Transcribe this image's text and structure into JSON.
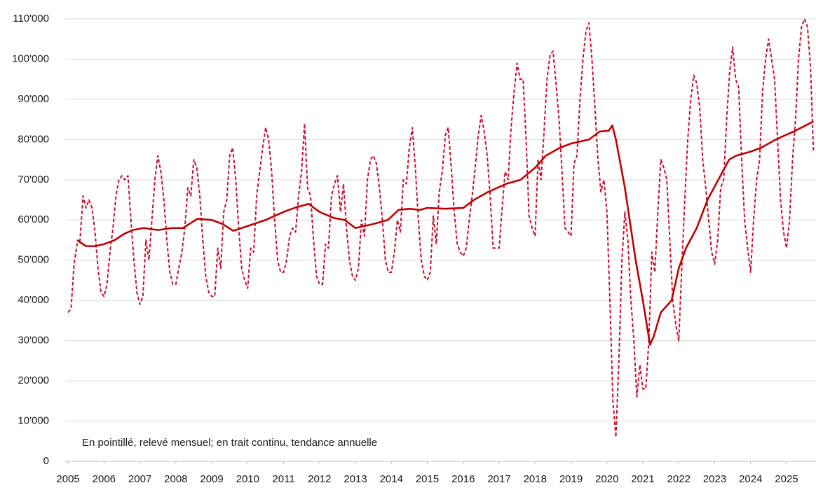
{
  "chart_data": {
    "type": "line",
    "annotation": "En pointillé, relevé mensuel; en trait continu, tendance annuelle",
    "xlim": [
      2004.92,
      2025.82
    ],
    "xticks": [
      2005,
      2006,
      2007,
      2008,
      2009,
      2010,
      2011,
      2012,
      2013,
      2014,
      2015,
      2016,
      2017,
      2018,
      2019,
      2020,
      2021,
      2022,
      2023,
      2024,
      2025
    ],
    "ylim": [
      0,
      110000
    ],
    "yticks": [
      0,
      {
        "value": 10000,
        "label": "10'000"
      },
      {
        "value": 20000,
        "label": "20'000"
      },
      {
        "value": 30000,
        "label": "30'000"
      },
      {
        "value": 40000,
        "label": "40'000"
      },
      {
        "value": 50000,
        "label": "50'000"
      },
      {
        "value": 60000,
        "label": "60'000"
      },
      {
        "value": 70000,
        "label": "70'000"
      },
      {
        "value": 80000,
        "label": "80'000"
      },
      {
        "value": 90000,
        "label": "90'000"
      },
      {
        "value": 100000,
        "label": "100'000"
      },
      {
        "value": 110000,
        "label": "110'000"
      }
    ],
    "grid": true,
    "series": [
      {
        "color": "#c8102e",
        "line_style": "dashed",
        "x": [
          2005,
          2005.083,
          2005.167,
          2005.25,
          2005.333,
          2005.417,
          2005.5,
          2005.583,
          2005.667,
          2005.75,
          2005.833,
          2005.917,
          2006,
          2006.083,
          2006.167,
          2006.25,
          2006.333,
          2006.417,
          2006.5,
          2006.583,
          2006.667,
          2006.75,
          2006.833,
          2006.917,
          2007,
          2007.083,
          2007.167,
          2007.25,
          2007.333,
          2007.417,
          2007.5,
          2007.583,
          2007.667,
          2007.75,
          2007.833,
          2007.917,
          2008,
          2008.083,
          2008.167,
          2008.25,
          2008.333,
          2008.417,
          2008.5,
          2008.583,
          2008.667,
          2008.75,
          2008.833,
          2008.917,
          2009,
          2009.083,
          2009.167,
          2009.25,
          2009.333,
          2009.417,
          2009.5,
          2009.583,
          2009.667,
          2009.75,
          2009.833,
          2009.917,
          2010,
          2010.083,
          2010.167,
          2010.25,
          2010.333,
          2010.417,
          2010.5,
          2010.583,
          2010.667,
          2010.75,
          2010.833,
          2010.917,
          2011,
          2011.083,
          2011.167,
          2011.25,
          2011.333,
          2011.417,
          2011.5,
          2011.583,
          2011.667,
          2011.75,
          2011.833,
          2011.917,
          2012,
          2012.083,
          2012.167,
          2012.25,
          2012.333,
          2012.417,
          2012.5,
          2012.583,
          2012.667,
          2012.75,
          2012.833,
          2012.917,
          2013,
          2013.083,
          2013.167,
          2013.25,
          2013.333,
          2013.417,
          2013.5,
          2013.583,
          2013.667,
          2013.75,
          2013.833,
          2013.917,
          2014,
          2014.083,
          2014.167,
          2014.25,
          2014.333,
          2014.417,
          2014.5,
          2014.583,
          2014.667,
          2014.75,
          2014.833,
          2014.917,
          2015,
          2015.083,
          2015.167,
          2015.25,
          2015.333,
          2015.417,
          2015.5,
          2015.583,
          2015.667,
          2015.75,
          2015.833,
          2015.917,
          2016,
          2016.083,
          2016.167,
          2016.25,
          2016.333,
          2016.417,
          2016.5,
          2016.583,
          2016.667,
          2016.75,
          2016.833,
          2016.917,
          2017,
          2017.083,
          2017.167,
          2017.25,
          2017.333,
          2017.417,
          2017.5,
          2017.583,
          2017.667,
          2017.75,
          2017.833,
          2017.917,
          2018,
          2018.083,
          2018.167,
          2018.25,
          2018.333,
          2018.417,
          2018.5,
          2018.583,
          2018.667,
          2018.75,
          2018.833,
          2018.917,
          2019,
          2019.083,
          2019.167,
          2019.25,
          2019.333,
          2019.417,
          2019.5,
          2019.583,
          2019.667,
          2019.75,
          2019.833,
          2019.917,
          2020,
          2020.083,
          2020.167,
          2020.25,
          2020.333,
          2020.417,
          2020.5,
          2020.583,
          2020.667,
          2020.75,
          2020.833,
          2020.917,
          2021,
          2021.083,
          2021.167,
          2021.25,
          2021.333,
          2021.417,
          2021.5,
          2021.583,
          2021.667,
          2021.75,
          2021.833,
          2021.917,
          2022,
          2022.083,
          2022.167,
          2022.25,
          2022.333,
          2022.417,
          2022.5,
          2022.583,
          2022.667,
          2022.75,
          2022.833,
          2022.917,
          2023,
          2023.083,
          2023.167,
          2023.25,
          2023.333,
          2023.417,
          2023.5,
          2023.583,
          2023.667,
          2023.75,
          2023.833,
          2023.917,
          2024,
          2024.083,
          2024.167,
          2024.25,
          2024.333,
          2024.417,
          2024.5,
          2024.583,
          2024.667,
          2024.75,
          2024.833,
          2024.917,
          2025,
          2025.083,
          2025.167,
          2025.25,
          2025.333,
          2025.417,
          2025.5,
          2025.583,
          2025.667,
          2025.75
        ],
        "values": [
          37000,
          38000,
          49000,
          54000,
          55000,
          66000,
          63000,
          65000,
          63000,
          57000,
          48000,
          42000,
          41000,
          44000,
          52000,
          58000,
          66000,
          70000,
          71000,
          70000,
          71000,
          60000,
          50000,
          42000,
          39000,
          41000,
          55000,
          50000,
          60000,
          70000,
          76000,
          72000,
          65000,
          55000,
          47000,
          44000,
          44000,
          48000,
          52000,
          58000,
          68000,
          66000,
          75000,
          73000,
          66000,
          55000,
          46000,
          42000,
          41000,
          41000,
          53000,
          48000,
          62000,
          65000,
          76000,
          78000,
          70000,
          58000,
          48000,
          45000,
          43000,
          53000,
          52000,
          66000,
          72000,
          78000,
          83000,
          80000,
          72000,
          60000,
          50000,
          47000,
          47000,
          50000,
          56000,
          58000,
          57000,
          66000,
          72000,
          84000,
          68000,
          66000,
          55000,
          46000,
          44000,
          44000,
          54000,
          53000,
          66000,
          69000,
          71000,
          62000,
          69000,
          58000,
          50000,
          46000,
          45000,
          48000,
          60000,
          56000,
          70000,
          75000,
          76000,
          74000,
          68000,
          60000,
          50000,
          47000,
          47000,
          52000,
          60000,
          57000,
          70000,
          69000,
          78000,
          83000,
          73000,
          60000,
          50000,
          46000,
          45000,
          47000,
          61000,
          54000,
          67000,
          72000,
          81000,
          83000,
          73000,
          62000,
          54000,
          52000,
          51000,
          53000,
          60000,
          66000,
          73000,
          81000,
          86000,
          82000,
          76000,
          66000,
          53000,
          53000,
          53000,
          63000,
          72000,
          70000,
          83000,
          92000,
          99000,
          95000,
          95000,
          80000,
          61000,
          58000,
          56000,
          75000,
          70000,
          82000,
          95000,
          101000,
          102000,
          94000,
          85000,
          72000,
          58000,
          57000,
          56000,
          74000,
          76000,
          90000,
          100000,
          107000,
          109000,
          100000,
          88000,
          75000,
          67000,
          70000,
          62000,
          40000,
          15000,
          6000,
          25000,
          50000,
          62000,
          55000,
          40000,
          30000,
          16000,
          24000,
          18000,
          18000,
          30000,
          52000,
          47000,
          62000,
          75000,
          73000,
          70000,
          55000,
          40000,
          34000,
          30000,
          48000,
          65000,
          80000,
          90000,
          96000,
          94000,
          88000,
          75000,
          68000,
          60000,
          52000,
          49000,
          55000,
          68000,
          70000,
          85000,
          97000,
          103000,
          95000,
          93000,
          75000,
          60000,
          53000,
          47000,
          60000,
          70000,
          75000,
          92000,
          100000,
          105000,
          100000,
          95000,
          80000,
          65000,
          57000,
          53000,
          60000,
          75000,
          85000,
          100000,
          108000,
          110000,
          108000,
          98000,
          77000
        ]
      },
      {
        "color": "#c00000",
        "line_style": "solid",
        "x": [
          2005.25,
          2005.5,
          2005.75,
          2006,
          2006.3,
          2006.55,
          2006.8,
          2007.1,
          2007.5,
          2007.9,
          2008.2,
          2008.6,
          2009,
          2009.3,
          2009.6,
          2010,
          2010.5,
          2011,
          2011.3,
          2011.7,
          2012,
          2012.4,
          2012.7,
          2013,
          2013.5,
          2013.9,
          2014.2,
          2014.5,
          2014.8,
          2015,
          2015.5,
          2016,
          2016.3,
          2016.7,
          2017.2,
          2017.6,
          2018,
          2018.3,
          2018.7,
          2019,
          2019.5,
          2019.8,
          2020.05,
          2020.15,
          2020.25,
          2020.5,
          2020.8,
          2021,
          2021.2,
          2021.3,
          2021.5,
          2021.8,
          2022,
          2022.2,
          2022.5,
          2022.8,
          2023.1,
          2023.4,
          2023.6,
          2024,
          2024.3,
          2024.7,
          2025.2,
          2025.75
        ],
        "values": [
          55000,
          53500,
          53500,
          54000,
          55000,
          56500,
          57500,
          58000,
          57500,
          58000,
          58000,
          60300,
          60000,
          59000,
          57300,
          58500,
          60000,
          62000,
          63000,
          64000,
          62000,
          60500,
          60000,
          58000,
          59000,
          60000,
          62500,
          62800,
          62500,
          63000,
          62800,
          63000,
          65000,
          67000,
          69000,
          70000,
          73000,
          76000,
          78000,
          79000,
          80000,
          82000,
          82200,
          83500,
          80000,
          68000,
          50000,
          40000,
          29000,
          31000,
          37000,
          40000,
          48000,
          53000,
          58000,
          65000,
          70000,
          75000,
          76000,
          77000,
          78000,
          80000,
          82000,
          84500
        ]
      }
    ]
  }
}
